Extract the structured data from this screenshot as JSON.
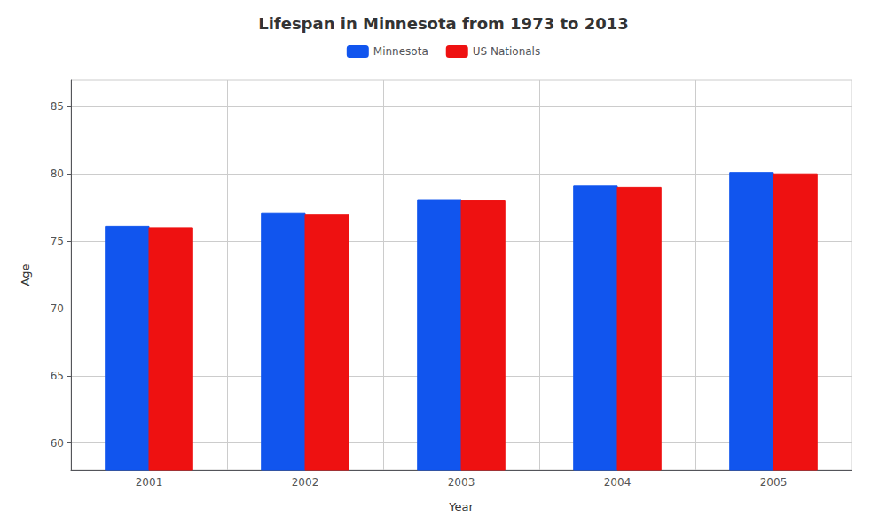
{
  "chart_data": {
    "type": "bar",
    "title": "Lifespan in Minnesota from 1973 to 2013",
    "xlabel": "Year",
    "ylabel": "Age",
    "categories": [
      "2001",
      "2002",
      "2003",
      "2004",
      "2005"
    ],
    "series": [
      {
        "name": "Minnesota",
        "color": "#1155ee",
        "values": [
          76.1,
          77.1,
          78.1,
          79.1,
          80.1
        ]
      },
      {
        "name": "US Nationals",
        "color": "#ee1111",
        "values": [
          76.0,
          77.0,
          78.0,
          79.0,
          80.0
        ]
      }
    ],
    "ylim": [
      58,
      87
    ],
    "yticks": [
      60,
      65,
      70,
      75,
      80,
      85
    ],
    "grid": true,
    "legend": "top"
  }
}
